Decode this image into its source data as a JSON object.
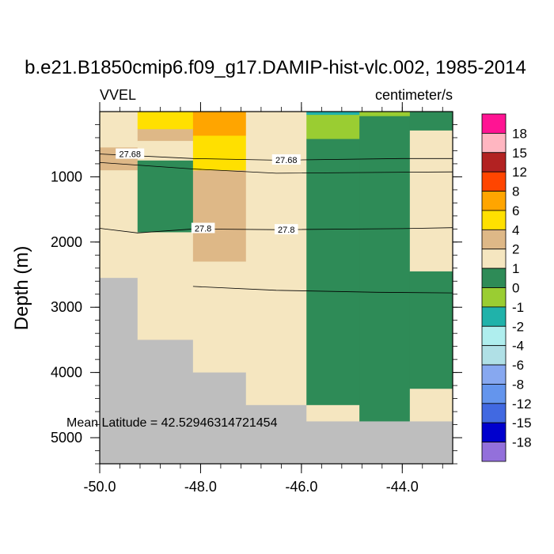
{
  "chart_data": {
    "type": "heatmap",
    "title": "b.e21.B1850cmip6.f09_g17.DAMIP-hist-vlc.002, 1985-2014",
    "variable_label": "VVEL",
    "units_label": "centimeter/s",
    "ylabel": "Depth (m)",
    "xlabel": "",
    "xlim": [
      -50.0,
      -43.0
    ],
    "ylim": [
      5400,
      0
    ],
    "x_ticks": [
      -50.0,
      -48.0,
      -46.0,
      -44.0
    ],
    "x_tick_labels": [
      "-50.0",
      "-48.0",
      "-46.0",
      "-44.0"
    ],
    "y_ticks": [
      1000,
      2000,
      3000,
      4000,
      5000
    ],
    "y_tick_labels": [
      "1000",
      "2000",
      "3000",
      "4000",
      "5000"
    ],
    "annotation": "Mean Latitude = 42.52946314721454",
    "colorbar": {
      "labels": [
        "18",
        "15",
        "12",
        "8",
        "6",
        "4",
        "2",
        "1",
        "0",
        "-1",
        "-2",
        "-4",
        "-6",
        "-8",
        "-12",
        "-15",
        "-18"
      ],
      "colors": [
        "#ff1493",
        "#ffb6c1",
        "#b22222",
        "#ff4500",
        "#ffa500",
        "#ffe000",
        "#deb887",
        "#f5e6c0",
        "#2e8b57",
        "#9acd32",
        "#20b2aa",
        "#afeeee",
        "#b0e0e6",
        "#87a8f0",
        "#6495ed",
        "#4169e1",
        "#0000cd",
        "#9370db"
      ]
    },
    "colors": {
      "land": "#bebebe",
      "cat_0_1": "#f5e6c0",
      "cat_1_2": "#deb887",
      "cat_2_4": "#ffe000",
      "cat_4_6": "#ffa500",
      "cat_neg1_0": "#2e8b57",
      "cat_neg2_neg1": "#9acd32",
      "cat_neg4_neg2": "#20b2aa"
    },
    "cells": [
      {
        "x": [
          -50.0,
          -49.25
        ],
        "d": [
          0,
          550
        ],
        "c": "cat_0_1"
      },
      {
        "x": [
          -50.0,
          -49.25
        ],
        "d": [
          550,
          700
        ],
        "c": "cat_1_2"
      },
      {
        "x": [
          -50.0,
          -49.25
        ],
        "d": [
          700,
          900
        ],
        "c": "cat_1_2"
      },
      {
        "x": [
          -50.0,
          -49.25
        ],
        "d": [
          900,
          2550
        ],
        "c": "cat_0_1"
      },
      {
        "x": [
          -50.0,
          -49.25
        ],
        "d": [
          2550,
          5400
        ],
        "c": "land"
      },
      {
        "x": [
          -49.25,
          -48.15
        ],
        "d": [
          0,
          270
        ],
        "c": "cat_2_4"
      },
      {
        "x": [
          -49.25,
          -48.15
        ],
        "d": [
          270,
          450
        ],
        "c": "cat_1_2"
      },
      {
        "x": [
          -49.25,
          -48.15
        ],
        "d": [
          450,
          750
        ],
        "c": "cat_0_1"
      },
      {
        "x": [
          -49.25,
          -48.15
        ],
        "d": [
          750,
          1850
        ],
        "c": "cat_neg1_0"
      },
      {
        "x": [
          -49.25,
          -48.15
        ],
        "d": [
          1850,
          3500
        ],
        "c": "cat_0_1"
      },
      {
        "x": [
          -49.25,
          -48.15
        ],
        "d": [
          3500,
          5400
        ],
        "c": "land"
      },
      {
        "x": [
          -48.15,
          -47.1
        ],
        "d": [
          0,
          370
        ],
        "c": "cat_4_6"
      },
      {
        "x": [
          -48.15,
          -47.1
        ],
        "d": [
          370,
          900
        ],
        "c": "cat_2_4"
      },
      {
        "x": [
          -48.15,
          -47.1
        ],
        "d": [
          900,
          2300
        ],
        "c": "cat_1_2"
      },
      {
        "x": [
          -48.15,
          -47.1
        ],
        "d": [
          2300,
          4000
        ],
        "c": "cat_0_1"
      },
      {
        "x": [
          -48.15,
          -47.1
        ],
        "d": [
          4000,
          5400
        ],
        "c": "land"
      },
      {
        "x": [
          -47.1,
          -45.9
        ],
        "d": [
          0,
          4500
        ],
        "c": "cat_0_1"
      },
      {
        "x": [
          -47.1,
          -45.9
        ],
        "d": [
          4500,
          5400
        ],
        "c": "land"
      },
      {
        "x": [
          -45.9,
          -44.85
        ],
        "d": [
          0,
          50
        ],
        "c": "cat_neg4_neg2"
      },
      {
        "x": [
          -45.9,
          -44.85
        ],
        "d": [
          50,
          420
        ],
        "c": "cat_neg2_neg1"
      },
      {
        "x": [
          -45.9,
          -44.85
        ],
        "d": [
          420,
          4500
        ],
        "c": "cat_neg1_0"
      },
      {
        "x": [
          -45.9,
          -44.85
        ],
        "d": [
          4500,
          4750
        ],
        "c": "cat_0_1"
      },
      {
        "x": [
          -45.9,
          -44.85
        ],
        "d": [
          4750,
          5400
        ],
        "c": "land"
      },
      {
        "x": [
          -44.85,
          -43.85
        ],
        "d": [
          0,
          70
        ],
        "c": "cat_neg2_neg1"
      },
      {
        "x": [
          -44.85,
          -43.85
        ],
        "d": [
          70,
          4750
        ],
        "c": "cat_neg1_0"
      },
      {
        "x": [
          -44.85,
          -43.85
        ],
        "d": [
          4750,
          5400
        ],
        "c": "land"
      },
      {
        "x": [
          -43.85,
          -43.0
        ],
        "d": [
          0,
          290
        ],
        "c": "cat_neg1_0"
      },
      {
        "x": [
          -43.85,
          -43.0
        ],
        "d": [
          290,
          2450
        ],
        "c": "cat_0_1"
      },
      {
        "x": [
          -43.85,
          -43.0
        ],
        "d": [
          2450,
          4250
        ],
        "c": "cat_neg1_0"
      },
      {
        "x": [
          -43.85,
          -43.0
        ],
        "d": [
          4250,
          4750
        ],
        "c": "cat_0_1"
      },
      {
        "x": [
          -43.85,
          -43.0
        ],
        "d": [
          4750,
          5400
        ],
        "c": "land"
      }
    ],
    "contours": [
      {
        "label": "27.68",
        "points": [
          [
            -50.0,
            650
          ],
          [
            -48.15,
            720
          ],
          [
            -46.5,
            745
          ],
          [
            -44.0,
            720
          ],
          [
            -43.0,
            720
          ]
        ],
        "label_positions": [
          [
            -49.4,
            650
          ],
          [
            -46.3,
            740
          ]
        ]
      },
      {
        "label": "",
        "points": [
          [
            -50.0,
            780
          ],
          [
            -48.15,
            880
          ],
          [
            -46.5,
            945
          ],
          [
            -44.0,
            930
          ],
          [
            -43.0,
            925
          ]
        ],
        "label_positions": []
      },
      {
        "label": "27.8",
        "points": [
          [
            -50.0,
            1790
          ],
          [
            -49.25,
            1860
          ],
          [
            -48.15,
            1800
          ],
          [
            -46.5,
            1810
          ],
          [
            -44.0,
            1795
          ],
          [
            -43.0,
            1780
          ]
        ],
        "label_positions": [
          [
            -47.95,
            1790
          ],
          [
            -46.3,
            1810
          ]
        ]
      },
      {
        "label": "",
        "points": [
          [
            -48.15,
            2680
          ],
          [
            -46.5,
            2740
          ],
          [
            -44.5,
            2770
          ],
          [
            -43.0,
            2780
          ]
        ],
        "label_positions": []
      }
    ]
  }
}
